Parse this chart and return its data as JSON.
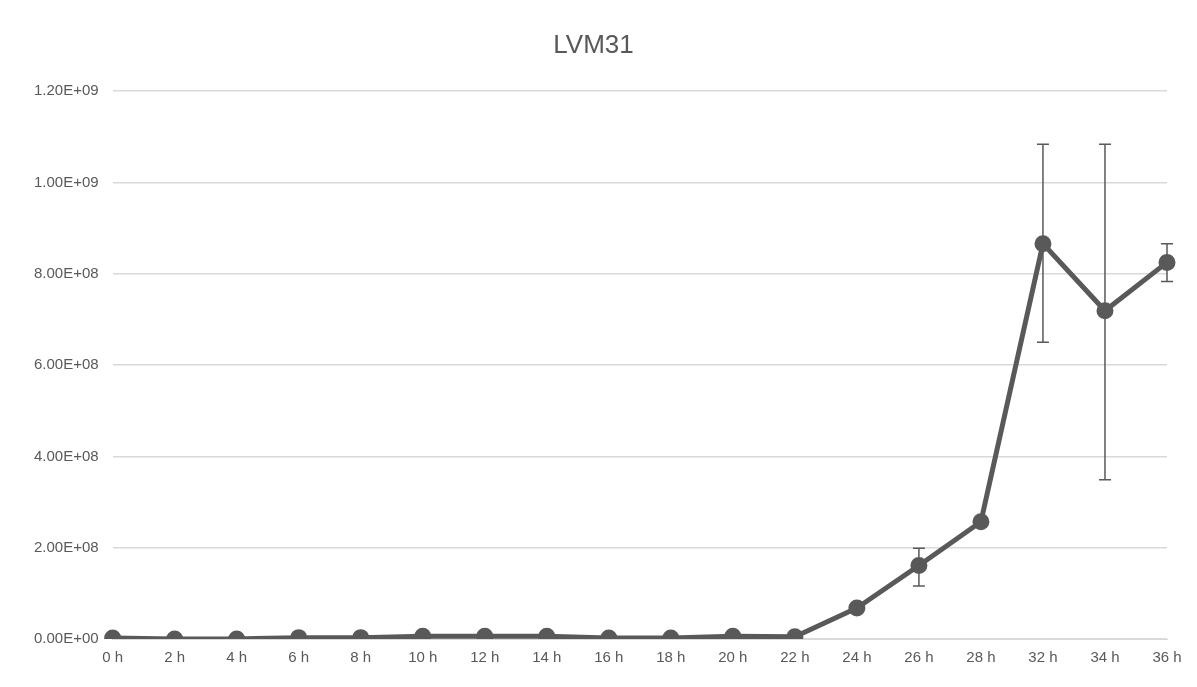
{
  "chart_data": {
    "type": "line",
    "title": "LVM31",
    "categories": [
      "0 h",
      "2 h",
      "4 h",
      "6 h",
      "8 h",
      "10 h",
      "12 h",
      "14 h",
      "16 h",
      "18 h",
      "20 h",
      "22 h",
      "24 h",
      "26 h",
      "28 h",
      "32 h",
      "34 h",
      "36 h"
    ],
    "series": [
      {
        "color": "#595959",
        "values": [
          2000000,
          0,
          0,
          3000000,
          3000000,
          6000000,
          6000000,
          6000000,
          2000000,
          2000000,
          6000000,
          5000000,
          68000000,
          161000000,
          257000000,
          866000000,
          719000000,
          825000000
        ],
        "errors": [
          null,
          null,
          null,
          null,
          null,
          null,
          null,
          null,
          null,
          null,
          null,
          null,
          null,
          [
            116000000,
            199000000
          ],
          null,
          [
            650000000,
            1084000000
          ],
          [
            349000000,
            1084000000
          ],
          [
            783000000,
            866000000
          ]
        ]
      }
    ],
    "ylim": [
      0,
      1200000000
    ],
    "yticks": [
      {
        "value": 0,
        "label": "0.00E+00"
      },
      {
        "value": 200000000,
        "label": "2.00E+08"
      },
      {
        "value": 400000000,
        "label": "4.00E+08"
      },
      {
        "value": 600000000,
        "label": "6.00E+08"
      },
      {
        "value": 800000000,
        "label": "8.00E+08"
      },
      {
        "value": 1000000000,
        "label": "1.00E+09"
      },
      {
        "value": 1200000000,
        "label": "1.20E+09"
      }
    ],
    "grid": "y",
    "legend": false,
    "marker": "circle",
    "line_style": "solid"
  }
}
